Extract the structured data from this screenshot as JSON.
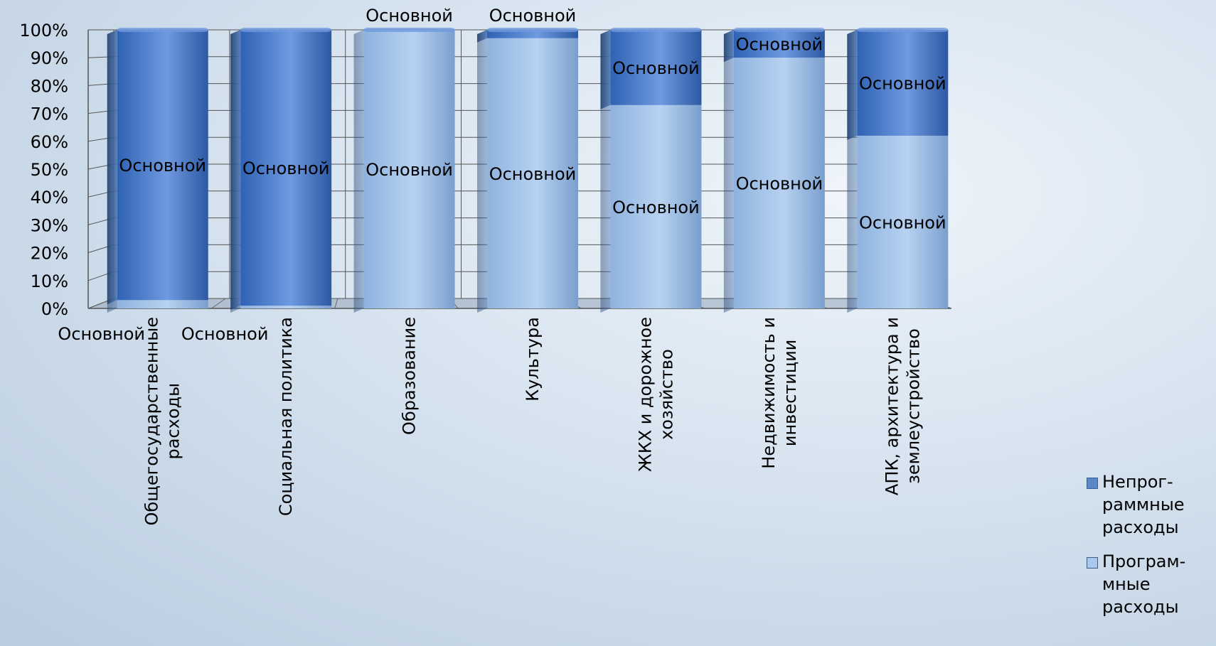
{
  "chart_data": {
    "type": "bar",
    "stacked": true,
    "percent": true,
    "ylim": [
      0,
      100
    ],
    "yticks": [
      "0%",
      "10%",
      "20%",
      "30%",
      "40%",
      "50%",
      "60%",
      "70%",
      "80%",
      "90%",
      "100%"
    ],
    "grid": true,
    "legend_position": "right-bottom",
    "categories": [
      "Общегосударственные\nрасходы",
      "Социальная политика",
      "Образование",
      "Культура",
      "ЖКХ и дорожное\nхозяйство",
      "Недвижимость и\nинвестиции",
      "АПК, архитектура и\nземлеустройство"
    ],
    "series": [
      {
        "name": "Программные расходы",
        "values": [
          3,
          1,
          100,
          97,
          73,
          90,
          62
        ],
        "labels": [
          "Основной",
          "Основной",
          "Основной",
          "Основной",
          "Основной",
          "Основной",
          "Основной"
        ]
      },
      {
        "name": "Непрограммные расходы",
        "values": [
          97,
          99,
          0,
          3,
          27,
          10,
          38
        ],
        "labels": [
          "Основной",
          "Основной",
          "Основной",
          "Основной",
          "Основной",
          "Основной",
          "Основной"
        ]
      }
    ],
    "legend": [
      {
        "text": "Непрог-\nраммные\nрасходы",
        "color": "#5b86c8"
      },
      {
        "text": "Програм-\nмные\nрасходы",
        "color": "#a9c8ec"
      }
    ]
  }
}
